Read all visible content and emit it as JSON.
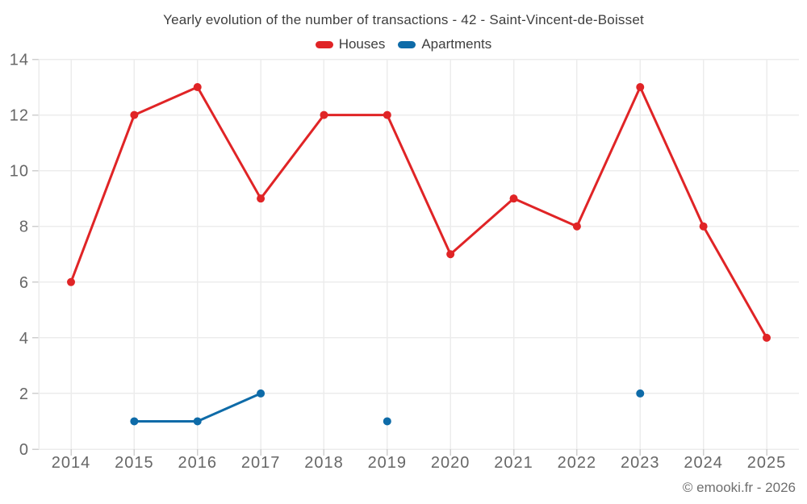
{
  "chart": {
    "title": "Yearly evolution of the number of transactions - 42 - Saint-Vincent-de-Boisset",
    "footer": "© emooki.fr - 2026"
  },
  "chart_data": {
    "type": "line",
    "title": "Yearly evolution of the number of transactions - 42 - Saint-Vincent-de-Boisset",
    "categories": [
      "2014",
      "2015",
      "2016",
      "2017",
      "2018",
      "2019",
      "2020",
      "2021",
      "2022",
      "2023",
      "2024",
      "2025"
    ],
    "series": [
      {
        "name": "Houses",
        "color": "#e02426",
        "values": [
          6,
          12,
          13,
          9,
          12,
          12,
          7,
          9,
          8,
          13,
          8,
          4
        ]
      },
      {
        "name": "Apartments",
        "color": "#0e6ba8",
        "values": [
          null,
          1,
          1,
          2,
          null,
          1,
          null,
          null,
          null,
          2,
          null,
          null
        ]
      }
    ],
    "ylim": [
      0,
      14
    ],
    "yticks": [
      0,
      2,
      4,
      6,
      8,
      10,
      12,
      14
    ],
    "grid": true,
    "legend_position": "top",
    "colors": {
      "grid": "#ececec",
      "axis_tick": "#cfcfcf",
      "tick_label": "#676767"
    }
  }
}
